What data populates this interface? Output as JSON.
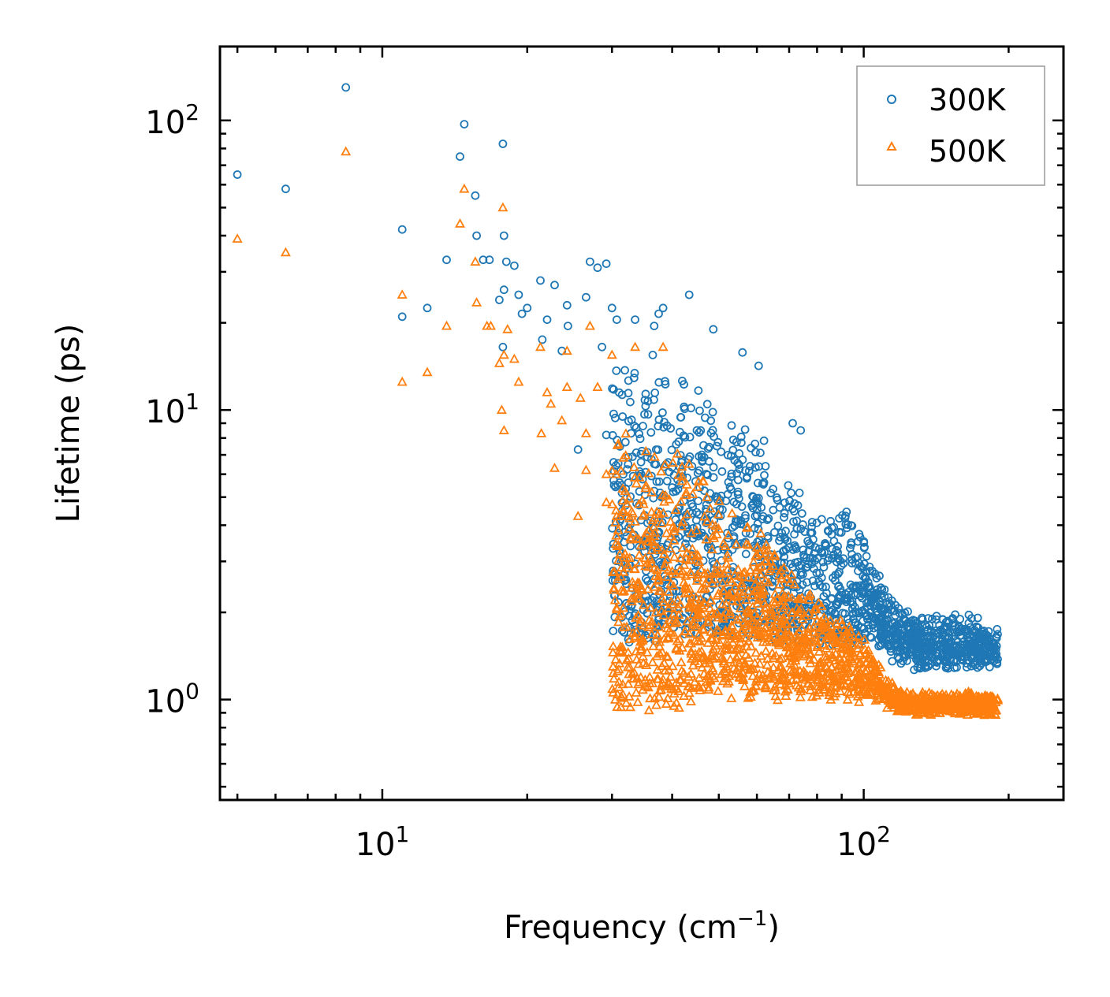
{
  "chart_data": {
    "type": "scatter",
    "xscale": "log",
    "yscale": "log",
    "xlabel": "Frequency (cm",
    "xlabel_sup": "−1",
    "xlabel_end": ")",
    "ylabel": "Lifetime (ps)",
    "xlim": [
      4.6,
      260
    ],
    "ylim": [
      0.45,
      180
    ],
    "xticks": [
      {
        "value": 10,
        "base": "10",
        "exp": "1"
      },
      {
        "value": 100,
        "base": "10",
        "exp": "2"
      }
    ],
    "yticks": [
      {
        "value": 1,
        "base": "10",
        "exp": "0"
      },
      {
        "value": 10,
        "base": "10",
        "exp": "1"
      },
      {
        "value": 100,
        "base": "10",
        "exp": "2"
      }
    ],
    "legend_position": "top-right",
    "series": [
      {
        "name": "300K",
        "color": "#1f77b4",
        "marker": "circle",
        "points": [
          [
            5.0,
            65
          ],
          [
            6.3,
            58
          ],
          [
            8.4,
            130
          ],
          [
            11.0,
            42
          ],
          [
            11.0,
            21
          ],
          [
            12.4,
            22.5
          ],
          [
            13.6,
            33
          ],
          [
            14.5,
            75
          ],
          [
            14.8,
            97
          ],
          [
            15.6,
            55
          ],
          [
            15.7,
            40
          ],
          [
            16.2,
            33
          ],
          [
            16.7,
            33
          ],
          [
            17.5,
            24
          ],
          [
            17.8,
            83
          ],
          [
            17.9,
            40
          ],
          [
            17.9,
            26
          ],
          [
            17.8,
            16.5
          ],
          [
            18.1,
            32.5
          ],
          [
            18.8,
            31.5
          ],
          [
            19.2,
            25
          ],
          [
            19.5,
            21.5
          ],
          [
            20.0,
            22.5
          ],
          [
            21.3,
            28
          ],
          [
            21.5,
            17.5
          ],
          [
            22.0,
            20.5
          ],
          [
            22.8,
            27
          ],
          [
            23.6,
            16
          ],
          [
            24.2,
            23
          ],
          [
            24.3,
            19.5
          ],
          [
            25.5,
            7.3
          ],
          [
            26.5,
            24.5
          ],
          [
            27.0,
            32.5
          ],
          [
            28.0,
            31
          ],
          [
            28.6,
            16.5
          ],
          [
            29.2,
            32
          ],
          [
            29.2,
            8.2
          ],
          [
            30.0,
            22.5
          ],
          [
            30.7,
            20.5
          ],
          [
            33.5,
            20.5
          ],
          [
            36.7,
            19.5
          ],
          [
            37.5,
            21.5
          ],
          [
            38.3,
            22.5
          ],
          [
            43.4,
            25
          ],
          [
            48.7,
            19
          ],
          [
            56.0,
            15.8
          ],
          [
            60.5,
            14.2
          ],
          [
            71.2,
            9
          ],
          [
            74.0,
            8.5
          ]
        ],
        "band": [
          [
            30,
            14.0,
            1.6
          ],
          [
            33,
            14.5,
            1.6
          ],
          [
            36,
            15.0,
            1.6
          ],
          [
            40,
            14.5,
            1.7
          ],
          [
            44,
            13.5,
            1.7
          ],
          [
            48,
            11.5,
            1.7
          ],
          [
            52,
            10.0,
            1.7
          ],
          [
            56,
            9.0,
            1.7
          ],
          [
            60,
            8.5,
            1.7
          ],
          [
            65,
            7.0,
            1.7
          ],
          [
            70,
            5.8,
            1.6
          ],
          [
            75,
            4.8,
            1.6
          ],
          [
            80,
            4.3,
            1.6
          ],
          [
            85,
            4.3,
            1.6
          ],
          [
            90,
            4.5,
            1.6
          ],
          [
            95,
            4.0,
            1.6
          ],
          [
            100,
            3.8,
            1.6
          ],
          [
            105,
            3.3,
            1.6
          ],
          [
            110,
            2.5,
            1.5
          ],
          [
            118,
            2.0,
            1.4
          ],
          [
            130,
            1.9,
            1.35
          ],
          [
            150,
            1.9,
            1.35
          ],
          [
            170,
            1.85,
            1.35
          ],
          [
            190,
            1.75,
            1.3
          ]
        ]
      },
      {
        "name": "500K",
        "color": "#ff7f0e",
        "marker": "triangle",
        "points": [
          [
            5.0,
            39
          ],
          [
            6.3,
            35
          ],
          [
            8.4,
            78
          ],
          [
            11.0,
            25
          ],
          [
            11.0,
            12.5
          ],
          [
            12.4,
            13.5
          ],
          [
            13.6,
            19.5
          ],
          [
            14.5,
            44
          ],
          [
            14.8,
            58
          ],
          [
            15.6,
            32.5
          ],
          [
            15.7,
            23.5
          ],
          [
            16.5,
            19.5
          ],
          [
            16.8,
            19.5
          ],
          [
            17.5,
            14.5
          ],
          [
            17.8,
            50
          ],
          [
            17.9,
            15.5
          ],
          [
            17.7,
            10
          ],
          [
            17.9,
            8.5
          ],
          [
            18.2,
            19
          ],
          [
            18.8,
            15
          ],
          [
            19.2,
            12.5
          ],
          [
            21.3,
            16.5
          ],
          [
            21.4,
            8.3
          ],
          [
            22.0,
            11.5
          ],
          [
            22.4,
            10.5
          ],
          [
            22.8,
            6.3
          ],
          [
            23.6,
            9.2
          ],
          [
            24.2,
            12
          ],
          [
            24.2,
            16
          ],
          [
            25.5,
            4.3
          ],
          [
            25.8,
            11
          ],
          [
            26.5,
            6.2
          ],
          [
            26.5,
            8.3
          ],
          [
            27.0,
            19.5
          ],
          [
            28.0,
            12
          ],
          [
            29.2,
            6.0
          ],
          [
            29.2,
            4.8
          ],
          [
            30.0,
            15.5
          ],
          [
            30.6,
            4.5
          ],
          [
            33.5,
            16.5
          ],
          [
            38.3,
            16.5
          ]
        ],
        "band": [
          [
            30,
            8.5,
            0.95
          ],
          [
            33,
            8.5,
            0.95
          ],
          [
            36,
            8.0,
            0.95
          ],
          [
            40,
            7.5,
            0.95
          ],
          [
            44,
            6.5,
            1.0
          ],
          [
            48,
            5.5,
            1.05
          ],
          [
            52,
            4.5,
            1.05
          ],
          [
            56,
            4.2,
            1.05
          ],
          [
            60,
            4.0,
            1.05
          ],
          [
            65,
            3.3,
            1.05
          ],
          [
            70,
            2.8,
            1.05
          ],
          [
            75,
            2.4,
            1.05
          ],
          [
            80,
            2.2,
            1.05
          ],
          [
            85,
            1.9,
            1.05
          ],
          [
            90,
            1.75,
            1.05
          ],
          [
            95,
            1.75,
            1.05
          ],
          [
            100,
            1.6,
            1.05
          ],
          [
            105,
            1.4,
            1.05
          ],
          [
            110,
            1.2,
            1.0
          ],
          [
            118,
            1.05,
            0.95
          ],
          [
            130,
            1.0,
            0.95
          ],
          [
            150,
            1.0,
            0.95
          ],
          [
            170,
            1.0,
            0.95
          ],
          [
            190,
            0.95,
            0.95
          ]
        ]
      }
    ]
  }
}
